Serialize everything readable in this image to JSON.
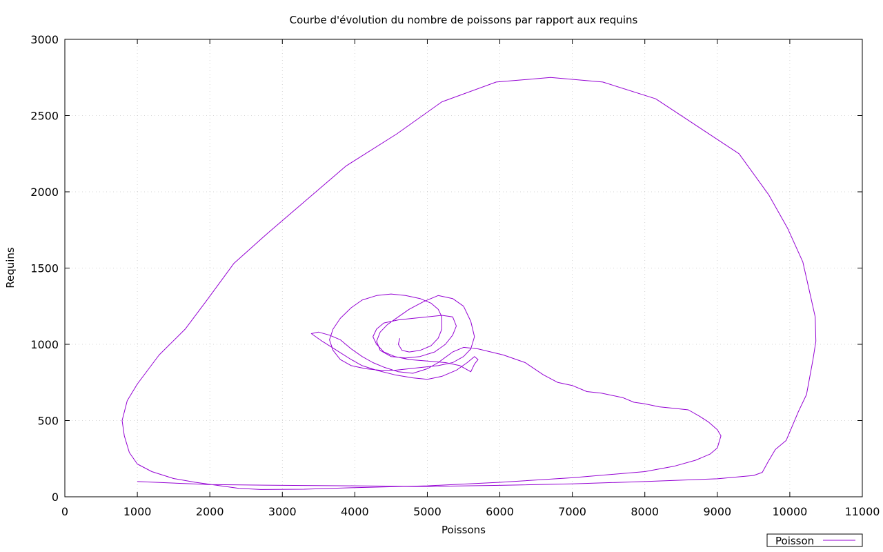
{
  "chart_data": {
    "type": "line",
    "title": "Courbe d'évolution du nombre de poissons par rapport aux requins",
    "xlabel": "Poissons",
    "ylabel": "Requins",
    "xlim": [
      0,
      11000
    ],
    "ylim": [
      0,
      3000
    ],
    "xticks": [
      0,
      1000,
      2000,
      3000,
      4000,
      5000,
      6000,
      7000,
      8000,
      9000,
      10000,
      11000
    ],
    "yticks": [
      0,
      500,
      1000,
      1500,
      2000,
      2500,
      3000
    ],
    "grid": true,
    "legend_position": "bottom-right",
    "series": [
      {
        "name": "Poisson",
        "color": "#9400d3",
        "points": [
          [
            1000,
            100
          ],
          [
            2000,
            80
          ],
          [
            3000,
            75
          ],
          [
            4000,
            72
          ],
          [
            5000,
            68
          ],
          [
            6000,
            75
          ],
          [
            7000,
            85
          ],
          [
            8000,
            100
          ],
          [
            9000,
            118
          ],
          [
            9500,
            140
          ],
          [
            9620,
            160
          ],
          [
            9700,
            230
          ],
          [
            9800,
            310
          ],
          [
            9950,
            370
          ],
          [
            10120,
            560
          ],
          [
            10230,
            670
          ],
          [
            10320,
            900
          ],
          [
            10360,
            1020
          ],
          [
            10350,
            1180
          ],
          [
            10280,
            1330
          ],
          [
            10180,
            1540
          ],
          [
            9970,
            1760
          ],
          [
            9710,
            1980
          ],
          [
            9300,
            2250
          ],
          [
            8150,
            2610
          ],
          [
            7420,
            2720
          ],
          [
            6700,
            2750
          ],
          [
            5950,
            2720
          ],
          [
            5200,
            2590
          ],
          [
            4580,
            2380
          ],
          [
            3880,
            2170
          ],
          [
            2800,
            1730
          ],
          [
            2330,
            1530
          ],
          [
            1960,
            1290
          ],
          [
            1660,
            1100
          ],
          [
            1300,
            930
          ],
          [
            1000,
            740
          ],
          [
            860,
            630
          ],
          [
            790,
            500
          ],
          [
            820,
            400
          ],
          [
            890,
            290
          ],
          [
            1000,
            215
          ],
          [
            1200,
            165
          ],
          [
            1500,
            120
          ],
          [
            1800,
            95
          ],
          [
            2100,
            75
          ],
          [
            2400,
            55
          ],
          [
            2700,
            48
          ],
          [
            3300,
            50
          ],
          [
            4000,
            60
          ],
          [
            5000,
            72
          ],
          [
            6000,
            95
          ],
          [
            7000,
            125
          ],
          [
            8000,
            165
          ],
          [
            8400,
            200
          ],
          [
            8700,
            240
          ],
          [
            8900,
            280
          ],
          [
            9000,
            320
          ],
          [
            9050,
            400
          ],
          [
            9000,
            440
          ],
          [
            8880,
            490
          ],
          [
            8750,
            530
          ],
          [
            8600,
            570
          ],
          [
            8400,
            580
          ],
          [
            8200,
            590
          ],
          [
            8000,
            610
          ],
          [
            7850,
            620
          ],
          [
            7700,
            650
          ],
          [
            7400,
            680
          ],
          [
            7200,
            690
          ],
          [
            7000,
            730
          ],
          [
            6800,
            750
          ],
          [
            6600,
            800
          ],
          [
            6350,
            880
          ],
          [
            6050,
            930
          ],
          [
            5700,
            970
          ],
          [
            5500,
            980
          ],
          [
            5350,
            950
          ],
          [
            5150,
            880
          ],
          [
            5000,
            840
          ],
          [
            4800,
            810
          ],
          [
            4600,
            820
          ],
          [
            4400,
            850
          ],
          [
            4250,
            880
          ],
          [
            4100,
            920
          ],
          [
            3950,
            970
          ],
          [
            3800,
            1030
          ],
          [
            3650,
            1060
          ],
          [
            3500,
            1080
          ],
          [
            3400,
            1070
          ],
          [
            3550,
            1020
          ],
          [
            3750,
            960
          ],
          [
            3950,
            900
          ],
          [
            4100,
            860
          ],
          [
            4300,
            830
          ],
          [
            4550,
            800
          ],
          [
            4800,
            780
          ],
          [
            5000,
            770
          ],
          [
            5200,
            790
          ],
          [
            5400,
            830
          ],
          [
            5550,
            880
          ],
          [
            5650,
            920
          ],
          [
            5700,
            900
          ],
          [
            5650,
            870
          ],
          [
            5600,
            820
          ],
          [
            5450,
            860
          ],
          [
            5250,
            880
          ],
          [
            5000,
            890
          ],
          [
            4750,
            900
          ],
          [
            4550,
            920
          ],
          [
            4400,
            950
          ],
          [
            4300,
            1000
          ],
          [
            4250,
            1050
          ],
          [
            4300,
            1100
          ],
          [
            4400,
            1140
          ],
          [
            4600,
            1160
          ],
          [
            4800,
            1170
          ],
          [
            5000,
            1180
          ],
          [
            5200,
            1190
          ],
          [
            5350,
            1180
          ],
          [
            5400,
            1120
          ],
          [
            5350,
            1060
          ],
          [
            5250,
            1000
          ],
          [
            5100,
            950
          ],
          [
            4900,
            920
          ],
          [
            4700,
            910
          ],
          [
            4500,
            920
          ],
          [
            4350,
            960
          ],
          [
            4300,
            1020
          ],
          [
            4350,
            1080
          ],
          [
            4450,
            1130
          ],
          [
            4600,
            1180
          ],
          [
            4750,
            1230
          ],
          [
            4950,
            1280
          ],
          [
            5150,
            1320
          ],
          [
            5350,
            1300
          ],
          [
            5500,
            1250
          ],
          [
            5600,
            1150
          ],
          [
            5650,
            1050
          ],
          [
            5600,
            970
          ],
          [
            5500,
            920
          ],
          [
            5350,
            880
          ],
          [
            5150,
            860
          ],
          [
            4950,
            850
          ],
          [
            4750,
            840
          ],
          [
            4550,
            830
          ],
          [
            4350,
            830
          ],
          [
            4150,
            840
          ],
          [
            3950,
            860
          ],
          [
            3800,
            900
          ],
          [
            3700,
            960
          ],
          [
            3650,
            1030
          ],
          [
            3700,
            1100
          ],
          [
            3800,
            1170
          ],
          [
            3950,
            1240
          ],
          [
            4100,
            1290
          ],
          [
            4300,
            1320
          ],
          [
            4500,
            1330
          ],
          [
            4700,
            1320
          ],
          [
            4900,
            1300
          ],
          [
            5050,
            1270
          ],
          [
            5150,
            1230
          ],
          [
            5200,
            1180
          ],
          [
            5200,
            1100
          ],
          [
            5150,
            1040
          ],
          [
            5050,
            990
          ],
          [
            4900,
            960
          ],
          [
            4750,
            950
          ],
          [
            4650,
            960
          ],
          [
            4600,
            1000
          ],
          [
            4620,
            1040
          ]
        ]
      }
    ]
  }
}
